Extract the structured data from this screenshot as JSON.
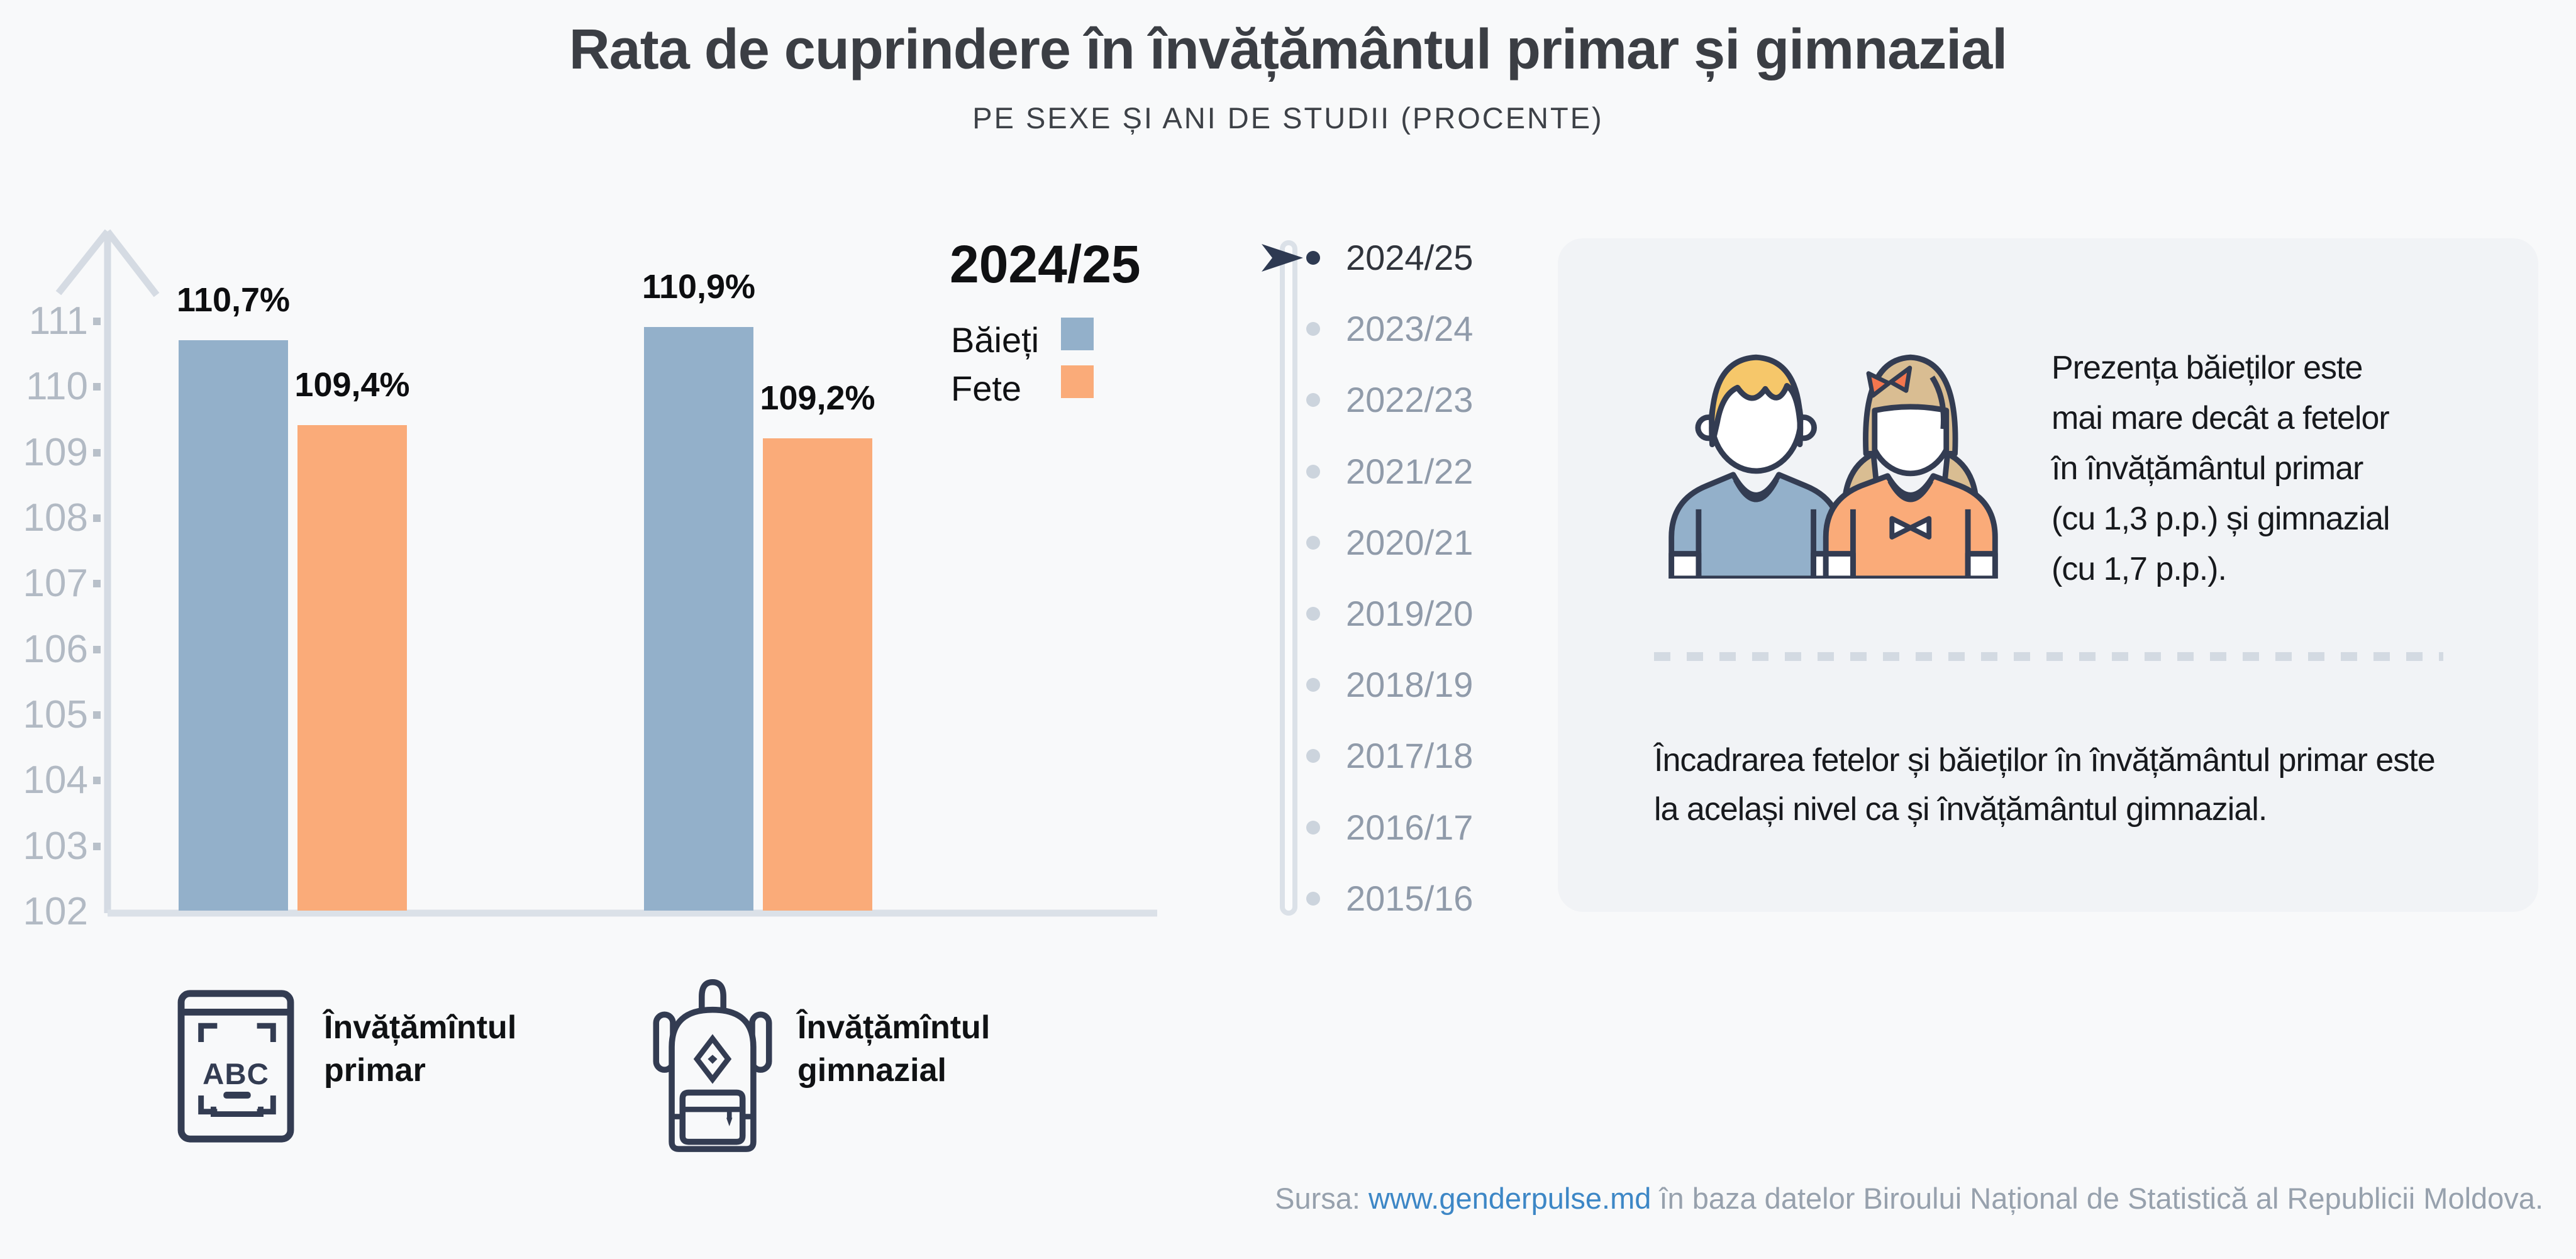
{
  "header": {
    "title": "Rata de cuprindere în învățământul primar și gimnazial",
    "subtitle": "PE SEXE ȘI ANI DE STUDII (PROCENTE)"
  },
  "chart_data": {
    "type": "bar",
    "title": "Rata de cuprindere în învățământul primar și gimnazial",
    "subtitle": "PE SEXE ȘI ANI DE STUDII (PROCENTE)",
    "categories": [
      "Învățămîntul primar",
      "Învățămîntul gimnazial"
    ],
    "series": [
      {
        "name": "Băieți",
        "color": "#93b0ca",
        "values": [
          110.7,
          110.9
        ],
        "labels": [
          "110,7%",
          "110,9%"
        ]
      },
      {
        "name": "Fete",
        "color": "#faab79",
        "values": [
          109.4,
          109.2
        ],
        "labels": [
          "109,4%",
          "109,2%"
        ]
      }
    ],
    "ylim": [
      102,
      111
    ],
    "yticks": [
      "111",
      "110",
      "109",
      "108",
      "107",
      "106",
      "105",
      "104",
      "103",
      "102"
    ],
    "grid": false,
    "legend_title": "2024/25",
    "legend_position": "top-right",
    "ylabel": "",
    "xlabel": ""
  },
  "legend": {
    "title": "2024/25",
    "items": [
      {
        "label": "Băieți",
        "color": "#93b0ca"
      },
      {
        "label": "Fete",
        "color": "#faab79"
      }
    ]
  },
  "timeline": {
    "items": [
      {
        "label": "2024/25",
        "selected": true
      },
      {
        "label": "2023/24",
        "selected": false
      },
      {
        "label": "2022/23",
        "selected": false
      },
      {
        "label": "2021/22",
        "selected": false
      },
      {
        "label": "2020/21",
        "selected": false
      },
      {
        "label": "2019/20",
        "selected": false
      },
      {
        "label": "2018/19",
        "selected": false
      },
      {
        "label": "2017/18",
        "selected": false
      },
      {
        "label": "2016/17",
        "selected": false
      },
      {
        "label": "2015/16",
        "selected": false
      }
    ]
  },
  "panel": {
    "insight_primary": "Prezența băieților este\nmai mare decât a fetelor\nîn învățământul primar\n(cu 1,3 p.p.) și gimnazial\n(cu 1,7 p.p.).",
    "insight_secondary": "Încadrarea fetelor și băieților în învățământul primar este\nla același nivel ca și învățământul gimnazial."
  },
  "categories_legend": [
    {
      "icon": "abc-book-icon",
      "label": "Învățămîntul\nprimar"
    },
    {
      "icon": "backpack-icon",
      "label": "Învățămîntul\ngimnazial"
    }
  ],
  "footer": {
    "source_prefix": "Sursa: ",
    "source_link": "www.genderpulse.md",
    "source_suffix": " în baza datelor Biroului Național de Statistică al Republicii Moldova."
  },
  "colors": {
    "boys": "#93b0ca",
    "girls": "#faab79",
    "navy_outline": "#333c52",
    "axis": "#d5dbe3",
    "link": "#3d87c6",
    "panel_bg": "#f1f3f6",
    "page_bg": "#f8f9fa"
  }
}
